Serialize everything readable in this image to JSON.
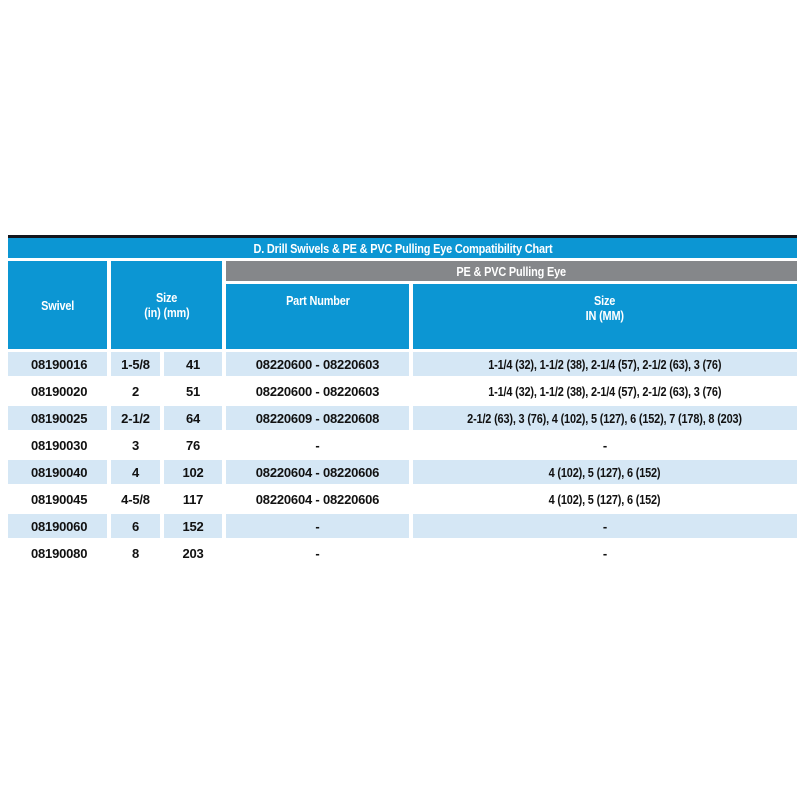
{
  "title": "D. Drill Swivels & PE & PVC Pulling Eye Compatibility Chart",
  "table": {
    "group_header": "PE & PVC Pulling Eye",
    "headers": {
      "swivel": "Swivel",
      "size_line1": "Size",
      "size_line2": "(in) (mm)",
      "part_number": "Part Number",
      "size2_line1": "Size",
      "size2_line2": "IN (MM)"
    },
    "rows": [
      {
        "swivel": "08190016",
        "size_in": "1-5/8",
        "size_mm": "41",
        "part_number": "08220600 - 08220603",
        "sizes": "1-1/4 (32), 1-1/2 (38), 2-1/4 (57), 2-1/2 (63), 3 (76)"
      },
      {
        "swivel": "08190020",
        "size_in": "2",
        "size_mm": "51",
        "part_number": "08220600 - 08220603",
        "sizes": "1-1/4 (32), 1-1/2 (38), 2-1/4 (57), 2-1/2 (63), 3 (76)"
      },
      {
        "swivel": "08190025",
        "size_in": "2-1/2",
        "size_mm": "64",
        "part_number": "08220609 - 08220608",
        "sizes": "2-1/2 (63), 3 (76), 4 (102), 5 (127), 6 (152), 7 (178), 8 (203)"
      },
      {
        "swivel": "08190030",
        "size_in": "3",
        "size_mm": "76",
        "part_number": "-",
        "sizes": "-"
      },
      {
        "swivel": "08190040",
        "size_in": "4",
        "size_mm": "102",
        "part_number": "08220604 - 08220606",
        "sizes": "4 (102), 5 (127), 6 (152)"
      },
      {
        "swivel": "08190045",
        "size_in": "4-5/8",
        "size_mm": "117",
        "part_number": "08220604 - 08220606",
        "sizes": "4 (102), 5 (127), 6 (152)"
      },
      {
        "swivel": "08190060",
        "size_in": "6",
        "size_mm": "152",
        "part_number": "-",
        "sizes": "-"
      },
      {
        "swivel": "08190080",
        "size_in": "8",
        "size_mm": "203",
        "part_number": "-",
        "sizes": "-"
      }
    ]
  },
  "colors": {
    "header_blue": "#0c96d3",
    "group_gray": "#85878a",
    "row_alt_blue": "#d5e7f5",
    "top_border": "#12161e"
  }
}
